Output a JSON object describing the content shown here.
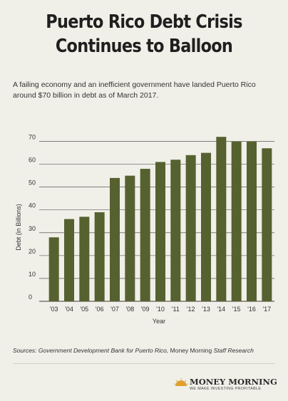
{
  "header": {
    "title": "Puerto Rico Debt Crisis Continues to Balloon",
    "subtitle": "A failing economy and an inefficient government have landed Puerto Rico around $70 billion in debt as of March 2017."
  },
  "chart_data": {
    "type": "bar",
    "categories": [
      "'03",
      "'04",
      "'05",
      "'06",
      "'07",
      "'08",
      "'09",
      "'10",
      "'11",
      "'12",
      "'13",
      "'14",
      "'15",
      "'16",
      "'17"
    ],
    "values": [
      28,
      36,
      37,
      39,
      54,
      55,
      58,
      61,
      62,
      64,
      65,
      72,
      70,
      70,
      67
    ],
    "xlabel": "Year",
    "ylabel": "Debt (in Billions)",
    "ylim": [
      0,
      70
    ],
    "yticks": [
      0,
      10,
      20,
      30,
      40,
      50,
      60,
      70
    ],
    "grid": true,
    "colors": {
      "bar": "#566130",
      "grid": "#3a3a3a"
    }
  },
  "footer": {
    "source_prefix": "Sources: Government Development Bank for Puerto Rico, ",
    "source_middle": "Money Morning",
    "source_suffix": " Staff Research",
    "logo_name": "MONEY MORNING",
    "logo_tagline": "WE MAKE INVESTING PROFITABLE",
    "logo_icon": "sunrise-icon",
    "logo_color": "#e0a030"
  }
}
